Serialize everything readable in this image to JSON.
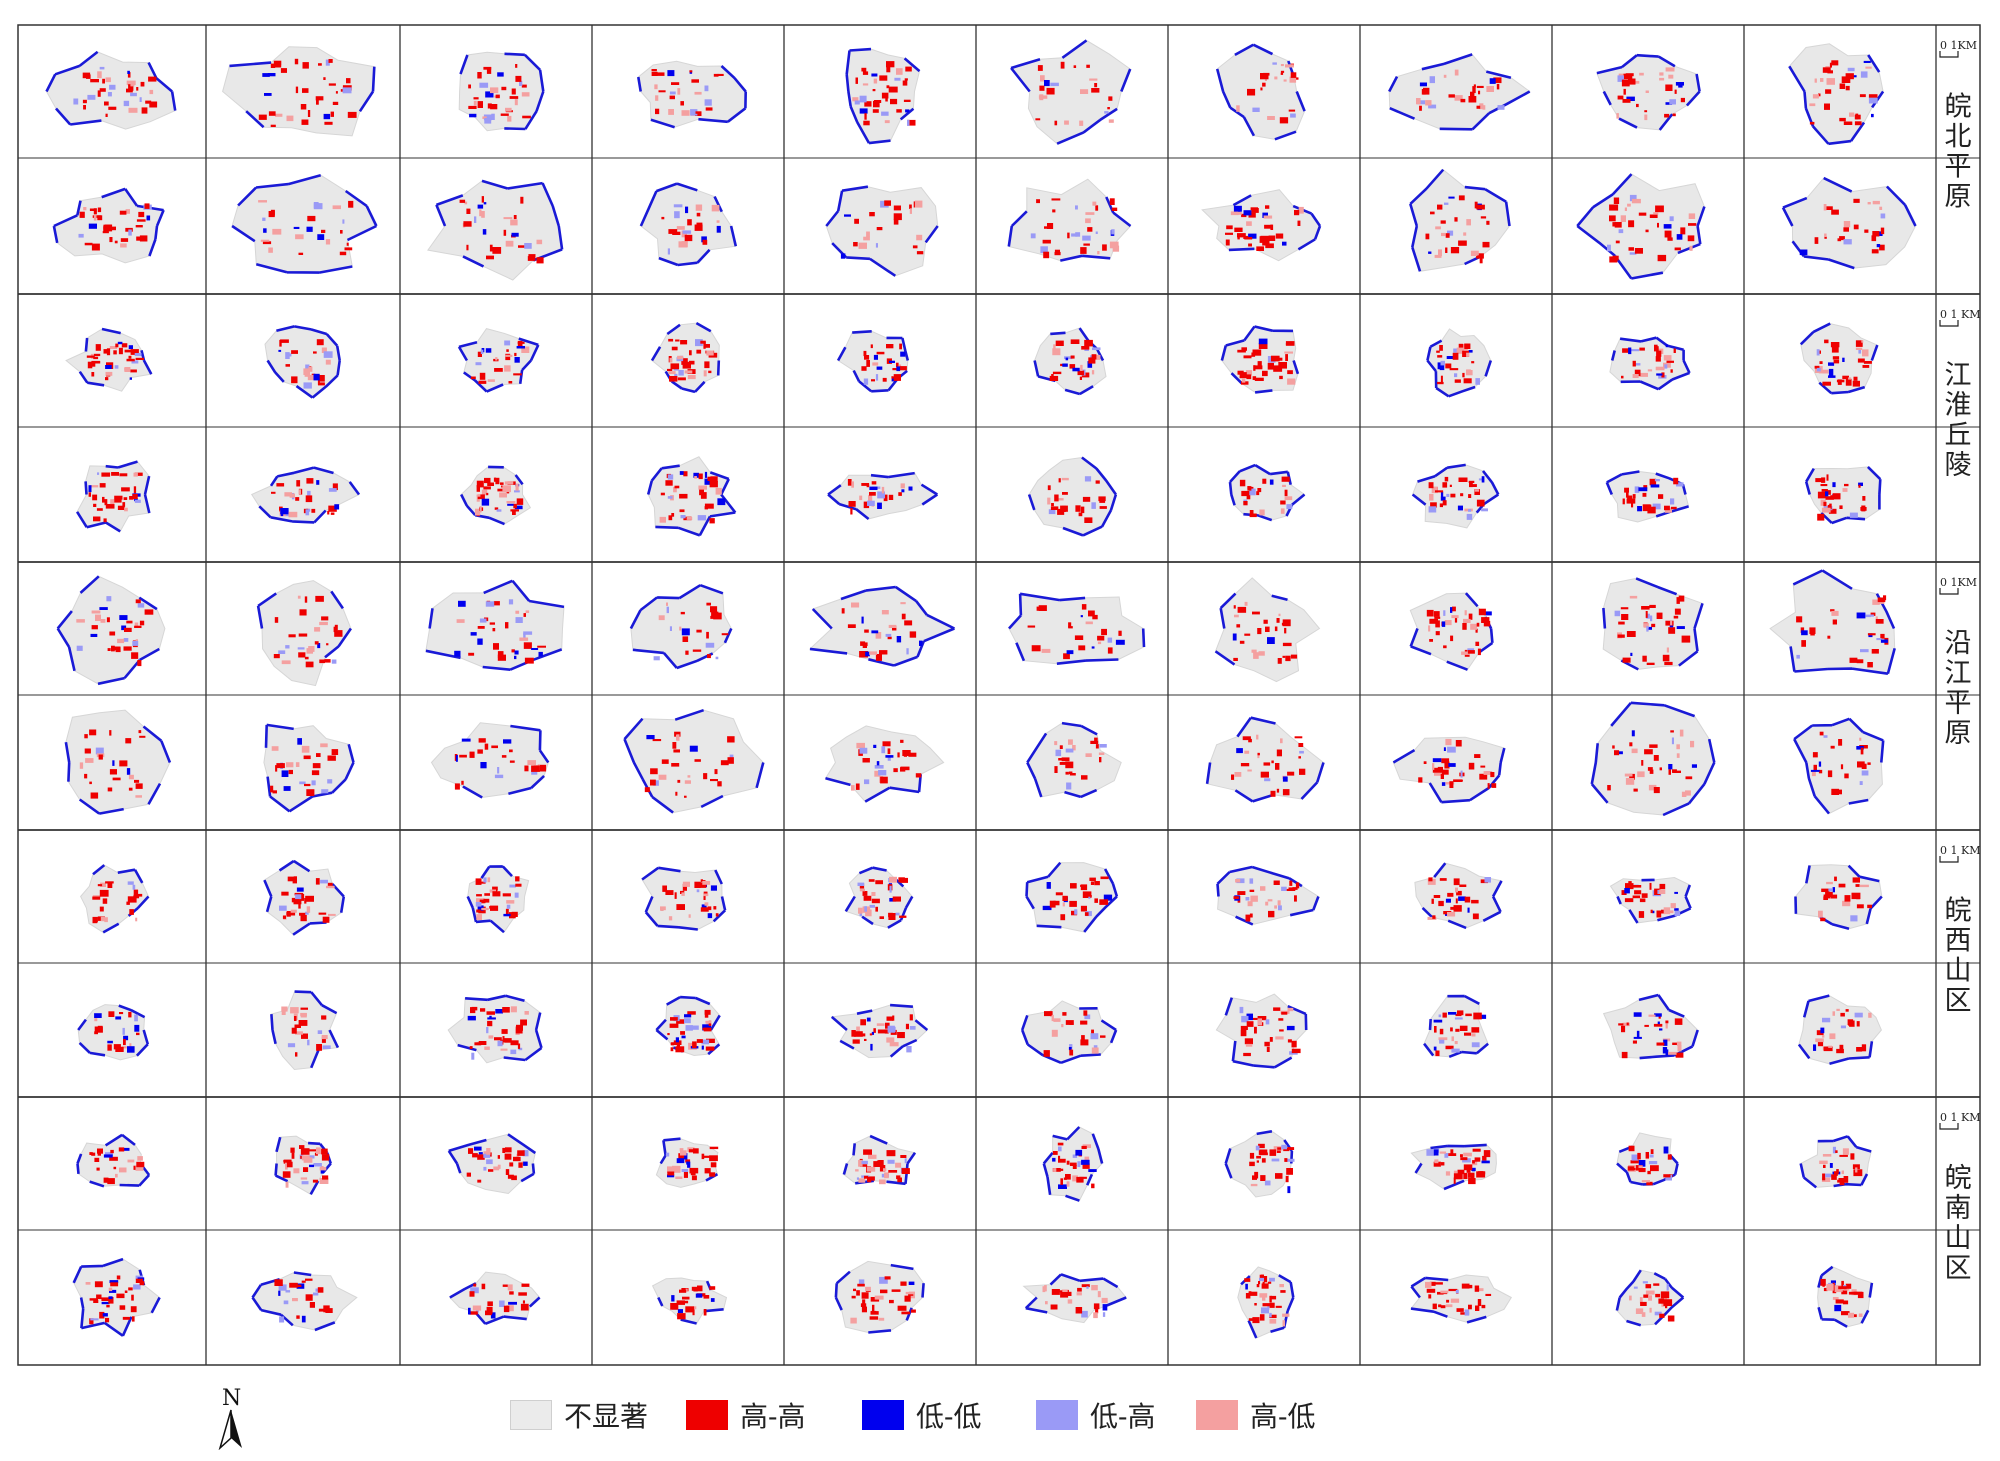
{
  "regions": [
    {
      "name_chars": [
        "皖",
        "北",
        "平",
        "原"
      ],
      "scale_label": "0    1KM"
    },
    {
      "name_chars": [
        "江",
        "淮",
        "丘",
        "陵"
      ],
      "scale_label": "0   1 KM"
    },
    {
      "name_chars": [
        "沿",
        "江",
        "平",
        "原"
      ],
      "scale_label": "0    1KM"
    },
    {
      "name_chars": [
        "皖",
        "西",
        "山",
        "区"
      ],
      "scale_label": "0  1 KM"
    },
    {
      "name_chars": [
        "皖",
        "南",
        "山",
        "区"
      ],
      "scale_label": "0  1 KM"
    }
  ],
  "grid": {
    "columns": 10,
    "rows": 10
  },
  "north_label": "N",
  "legend": [
    {
      "label": "不显著",
      "color": "#ebebeb"
    },
    {
      "label": "高-高",
      "color": "#ee0000"
    },
    {
      "label": "低-低",
      "color": "#0000ee"
    },
    {
      "label": "低-高",
      "color": "#9a9af6"
    },
    {
      "label": "高-低",
      "color": "#f4a0a0"
    }
  ],
  "colors": {
    "boundary": "#1a1ad6",
    "grid_line": "#333333",
    "not_significant": "#e8e8e8"
  }
}
